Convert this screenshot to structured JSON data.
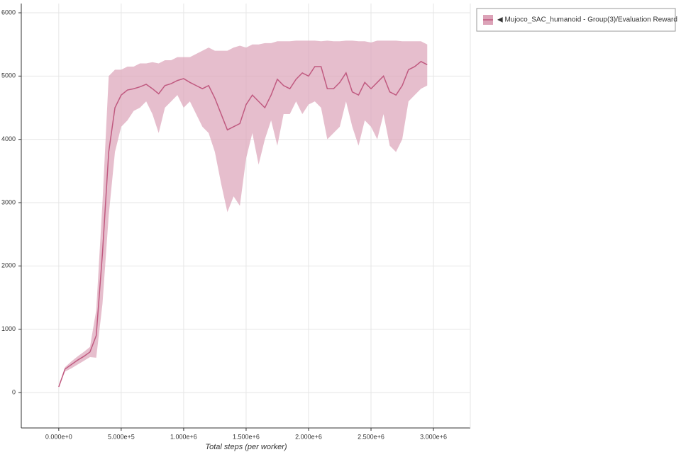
{
  "chart_data": {
    "type": "line-band",
    "x_label": "Total steps (per worker)",
    "x": [
      0,
      50000,
      100000,
      150000,
      200000,
      250000,
      300000,
      350000,
      400000,
      450000,
      500000,
      550000,
      600000,
      650000,
      700000,
      750000,
      800000,
      850000,
      900000,
      950000,
      1000000,
      1050000,
      1100000,
      1150000,
      1200000,
      1250000,
      1300000,
      1350000,
      1400000,
      1450000,
      1500000,
      1550000,
      1600000,
      1650000,
      1700000,
      1750000,
      1800000,
      1850000,
      1900000,
      1950000,
      2000000,
      2050000,
      2100000,
      2150000,
      2200000,
      2250000,
      2300000,
      2350000,
      2400000,
      2450000,
      2500000,
      2550000,
      2600000,
      2650000,
      2700000,
      2750000,
      2800000,
      2850000,
      2900000,
      2950000
    ],
    "series": [
      {
        "name": "◀ Mujoco_SAC_humanoid - Group(3)/Evaluation Reward",
        "color": "#c05a80",
        "band_color": "#dca3b8",
        "values": [
          90,
          370,
          440,
          510,
          570,
          640,
          900,
          2200,
          3800,
          4500,
          4700,
          4780,
          4800,
          4830,
          4870,
          4800,
          4720,
          4850,
          4880,
          4930,
          4960,
          4900,
          4850,
          4800,
          4850,
          4650,
          4400,
          4150,
          4200,
          4250,
          4550,
          4700,
          4600,
          4500,
          4700,
          4950,
          4850,
          4800,
          4950,
          5050,
          5000,
          5150,
          5150,
          4800,
          4800,
          4900,
          5050,
          4750,
          4700,
          4900,
          4800,
          4900,
          5000,
          4750,
          4700,
          4850,
          5100,
          5150,
          5230,
          5180
        ],
        "lower": [
          80,
          330,
          380,
          440,
          500,
          560,
          550,
          1400,
          2800,
          3800,
          4200,
          4300,
          4450,
          4500,
          4600,
          4400,
          4100,
          4500,
          4600,
          4700,
          4500,
          4600,
          4400,
          4200,
          4100,
          3800,
          3300,
          2850,
          3100,
          2950,
          3700,
          4100,
          3600,
          4000,
          4300,
          3900,
          4400,
          4400,
          4600,
          4400,
          4550,
          4600,
          4500,
          4000,
          4100,
          4200,
          4600,
          4200,
          3900,
          4300,
          4200,
          4000,
          4400,
          3900,
          3800,
          4000,
          4600,
          4700,
          4800,
          4850
        ],
        "upper": [
          100,
          400,
          490,
          570,
          640,
          720,
          1300,
          3000,
          5000,
          5100,
          5100,
          5150,
          5150,
          5200,
          5200,
          5220,
          5200,
          5250,
          5250,
          5300,
          5300,
          5300,
          5350,
          5400,
          5450,
          5400,
          5400,
          5400,
          5450,
          5480,
          5450,
          5500,
          5500,
          5520,
          5520,
          5550,
          5550,
          5550,
          5560,
          5560,
          5560,
          5560,
          5550,
          5560,
          5550,
          5550,
          5560,
          5560,
          5550,
          5550,
          5530,
          5560,
          5560,
          5560,
          5560,
          5550,
          5550,
          5550,
          5550,
          5500
        ]
      }
    ],
    "xlim": [
      -300000,
      3295000
    ],
    "ylim": [
      -560,
      6146
    ],
    "xticks": [
      {
        "value": 0,
        "label": "0.000e+0"
      },
      {
        "value": 500000,
        "label": "5.000e+5"
      },
      {
        "value": 1000000,
        "label": "1.000e+6"
      },
      {
        "value": 1500000,
        "label": "1.500e+6"
      },
      {
        "value": 2000000,
        "label": "2.000e+6"
      },
      {
        "value": 2500000,
        "label": "2.500e+6"
      },
      {
        "value": 3000000,
        "label": "3.000e+6"
      }
    ],
    "yticks": [
      0,
      1000,
      2000,
      3000,
      4000,
      5000,
      6000
    ],
    "grid": true,
    "legend": "top-right"
  }
}
